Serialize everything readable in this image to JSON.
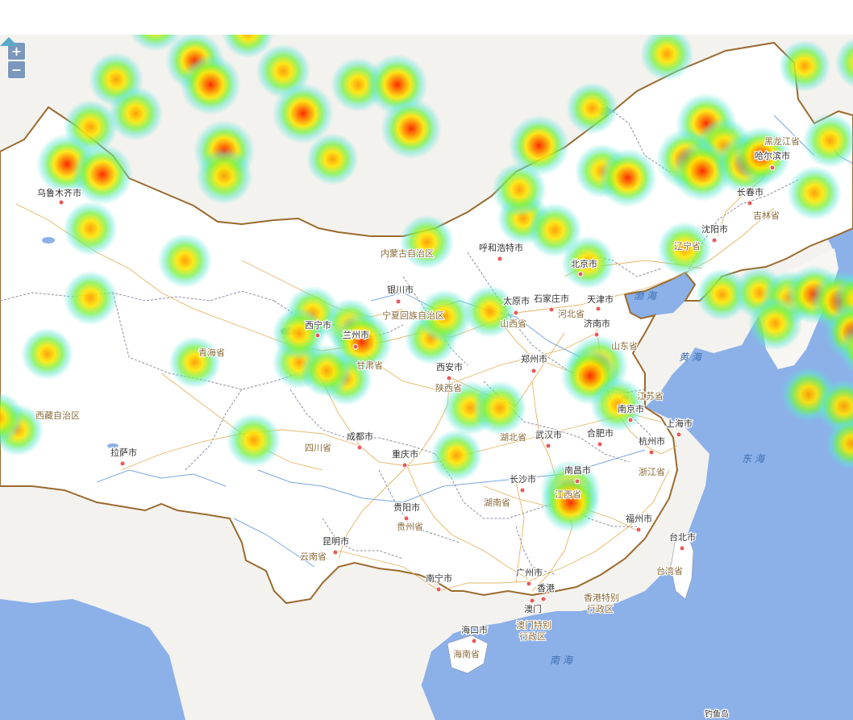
{
  "zoom": {
    "in_label": "+",
    "out_label": "−"
  },
  "colors": {
    "land": "#f3f2ef",
    "china": "#ffffff",
    "sea": "#8cb0e8",
    "border": "#9a6a2e",
    "road": "#e0a84a",
    "province_line": "#8a8fa3"
  },
  "cities": [
    {
      "name": "乌鲁木齐市"
    },
    {
      "name": "拉萨市"
    },
    {
      "name": "西宁市"
    },
    {
      "name": "兰州市"
    },
    {
      "name": "银川市"
    },
    {
      "name": "呼和浩特市"
    },
    {
      "name": "太原市"
    },
    {
      "name": "石家庄市"
    },
    {
      "name": "北京市"
    },
    {
      "name": "天津市"
    },
    {
      "name": "济南市"
    },
    {
      "name": "郑州市"
    },
    {
      "name": "西安市"
    },
    {
      "name": "成都市"
    },
    {
      "name": "重庆市"
    },
    {
      "name": "贵阳市"
    },
    {
      "name": "昆明市"
    },
    {
      "name": "南宁市"
    },
    {
      "name": "长沙市"
    },
    {
      "name": "武汉市"
    },
    {
      "name": "合肥市"
    },
    {
      "name": "南京市"
    },
    {
      "name": "上海市"
    },
    {
      "name": "杭州市"
    },
    {
      "name": "南昌市"
    },
    {
      "name": "福州市"
    },
    {
      "name": "台北市"
    },
    {
      "name": "广州市"
    },
    {
      "name": "香港"
    },
    {
      "name": "澳门"
    },
    {
      "name": "海口市"
    },
    {
      "name": "沈阳市"
    },
    {
      "name": "长春市"
    },
    {
      "name": "哈尔滨市"
    }
  ],
  "provinces": [
    {
      "name": "黑龙江省"
    },
    {
      "name": "吉林省"
    },
    {
      "name": "辽宁省"
    },
    {
      "name": "内蒙古自治区"
    },
    {
      "name": "宁夏回族自治区"
    },
    {
      "name": "青海省"
    },
    {
      "name": "西藏自治区"
    },
    {
      "name": "甘肃省"
    },
    {
      "name": "山西省"
    },
    {
      "name": "河北省"
    },
    {
      "name": "山东省"
    },
    {
      "name": "陕西省"
    },
    {
      "name": "四川省"
    },
    {
      "name": "湖北省"
    },
    {
      "name": "江苏省"
    },
    {
      "name": "浙江省"
    },
    {
      "name": "湖南省"
    },
    {
      "name": "江西省"
    },
    {
      "name": "贵州省"
    },
    {
      "name": "云南省"
    },
    {
      "name": "台湾省"
    },
    {
      "name": "海南省"
    },
    {
      "name": "香港特别行政区"
    },
    {
      "name": "澳门特别行政区"
    }
  ],
  "seas": [
    {
      "name": "渤 海"
    },
    {
      "name": "黄 海"
    },
    {
      "name": "东 海"
    },
    {
      "name": "南 海"
    }
  ],
  "islands": [
    {
      "name": "钓鱼岛"
    }
  ],
  "heat_points": [
    {
      "lon": 86.5,
      "lat": 47.8,
      "w": 0.75
    },
    {
      "lon": 88.5,
      "lat": 45.6,
      "w": 0.9
    },
    {
      "lon": 89.3,
      "lat": 44.2,
      "w": 1.0
    },
    {
      "lon": 91.2,
      "lat": 47.3,
      "w": 0.6
    },
    {
      "lon": 93.0,
      "lat": 45.0,
      "w": 0.7
    },
    {
      "lon": 94.0,
      "lat": 42.5,
      "w": 1.0
    },
    {
      "lon": 96.8,
      "lat": 44.2,
      "w": 0.7
    },
    {
      "lon": 98.8,
      "lat": 44.2,
      "w": 1.0
    },
    {
      "lon": 99.5,
      "lat": 41.6,
      "w": 1.0
    },
    {
      "lon": 95.5,
      "lat": 39.8,
      "w": 0.6
    },
    {
      "lon": 90.0,
      "lat": 40.3,
      "w": 1.0
    },
    {
      "lon": 90.0,
      "lat": 38.8,
      "w": 0.8
    },
    {
      "lon": 84.5,
      "lat": 44.5,
      "w": 0.7
    },
    {
      "lon": 85.5,
      "lat": 42.5,
      "w": 0.7
    },
    {
      "lon": 83.2,
      "lat": 41.7,
      "w": 0.7
    },
    {
      "lon": 82.0,
      "lat": 39.5,
      "w": 1.0
    },
    {
      "lon": 83.8,
      "lat": 38.9,
      "w": 1.0
    },
    {
      "lon": 83.2,
      "lat": 35.7,
      "w": 0.7
    },
    {
      "lon": 88.0,
      "lat": 33.8,
      "w": 0.7
    },
    {
      "lon": 83.2,
      "lat": 31.6,
      "w": 0.7
    },
    {
      "lon": 81.0,
      "lat": 28.3,
      "w": 0.6
    },
    {
      "lon": 88.5,
      "lat": 27.8,
      "w": 0.6
    },
    {
      "lon": 91.5,
      "lat": 23.2,
      "w": 0.7
    },
    {
      "lon": 93.8,
      "lat": 27.8,
      "w": 0.65
    },
    {
      "lon": 94.5,
      "lat": 30.7,
      "w": 0.7
    },
    {
      "lon": 96.4,
      "lat": 30.0,
      "w": 0.65
    },
    {
      "lon": 97.0,
      "lat": 29.0,
      "w": 1.0
    },
    {
      "lon": 93.8,
      "lat": 29.5,
      "w": 0.65
    },
    {
      "lon": 96.2,
      "lat": 26.8,
      "w": 0.6
    },
    {
      "lon": 100.3,
      "lat": 34.9,
      "w": 0.7
    },
    {
      "lon": 100.5,
      "lat": 29.2,
      "w": 0.6
    },
    {
      "lon": 101.2,
      "lat": 30.5,
      "w": 0.7
    },
    {
      "lon": 105.2,
      "lat": 36.3,
      "w": 0.6
    },
    {
      "lon": 106.0,
      "lat": 40.6,
      "w": 1.0
    },
    {
      "lon": 105.0,
      "lat": 38.0,
      "w": 0.7
    },
    {
      "lon": 106.8,
      "lat": 35.6,
      "w": 0.7
    },
    {
      "lon": 109.2,
      "lat": 39.1,
      "w": 0.7
    },
    {
      "lon": 110.5,
      "lat": 38.7,
      "w": 0.9
    },
    {
      "lon": 108.7,
      "lat": 42.8,
      "w": 0.6
    },
    {
      "lon": 112.5,
      "lat": 46.0,
      "w": 0.65
    },
    {
      "lon": 114.5,
      "lat": 41.9,
      "w": 1.0
    },
    {
      "lon": 115.4,
      "lat": 40.6,
      "w": 0.8
    },
    {
      "lon": 113.5,
      "lat": 39.8,
      "w": 1.0
    },
    {
      "lon": 114.3,
      "lat": 39.1,
      "w": 1.0
    },
    {
      "lon": 116.5,
      "lat": 39.5,
      "w": 1.0
    },
    {
      "lon": 117.3,
      "lat": 40.0,
      "w": 0.9
    },
    {
      "lon": 113.4,
      "lat": 34.5,
      "w": 0.7
    },
    {
      "lon": 120.8,
      "lat": 40.9,
      "w": 0.7
    },
    {
      "lon": 120.0,
      "lat": 37.8,
      "w": 0.7
    },
    {
      "lon": 124.5,
      "lat": 36.5,
      "w": 0.65
    },
    {
      "lon": 127.0,
      "lat": 38.4,
      "w": 0.6
    },
    {
      "lon": 119.5,
      "lat": 45.3,
      "w": 0.6
    },
    {
      "lon": 122.4,
      "lat": 45.5,
      "w": 0.65
    },
    {
      "lon": 115.3,
      "lat": 31.8,
      "w": 0.6
    },
    {
      "lon": 117.2,
      "lat": 31.9,
      "w": 0.6
    },
    {
      "lon": 118.7,
      "lat": 31.6,
      "w": 0.7
    },
    {
      "lon": 120.0,
      "lat": 31.8,
      "w": 0.9
    },
    {
      "lon": 121.3,
      "lat": 31.4,
      "w": 1.0
    },
    {
      "lon": 122.3,
      "lat": 31.5,
      "w": 0.75
    },
    {
      "lon": 124.2,
      "lat": 31.7,
      "w": 0.6
    },
    {
      "lon": 118.0,
      "lat": 30.1,
      "w": 0.7
    },
    {
      "lon": 122.0,
      "lat": 29.6,
      "w": 0.9
    },
    {
      "lon": 122.8,
      "lat": 28.6,
      "w": 1.0
    },
    {
      "lon": 124.8,
      "lat": 27.8,
      "w": 0.7
    },
    {
      "lon": 126.7,
      "lat": 25.8,
      "w": 0.6
    },
    {
      "lon": 119.7,
      "lat": 25.9,
      "w": 0.75
    },
    {
      "lon": 121.5,
      "lat": 25.2,
      "w": 0.7
    },
    {
      "lon": 123.3,
      "lat": 25.8,
      "w": 0.7
    },
    {
      "lon": 124.2,
      "lat": 24.9,
      "w": 1.0
    },
    {
      "lon": 124.7,
      "lat": 24.4,
      "w": 0.9
    },
    {
      "lon": 121.9,
      "lat": 23.0,
      "w": 0.6
    },
    {
      "lon": 126.7,
      "lat": 19.6,
      "w": 0.6
    },
    {
      "lon": 103.5,
      "lat": 30.8,
      "w": 0.6
    },
    {
      "lon": 109.0,
      "lat": 27.6,
      "w": 1.0
    },
    {
      "lon": 108.6,
      "lat": 27.0,
      "w": 0.9
    },
    {
      "lon": 110.0,
      "lat": 25.3,
      "w": 0.7
    },
    {
      "lon": 102.5,
      "lat": 25.1,
      "w": 0.7
    },
    {
      "lon": 104.0,
      "lat": 25.1,
      "w": 0.7
    },
    {
      "lon": 101.8,
      "lat": 22.3,
      "w": 0.6
    },
    {
      "lon": 107.6,
      "lat": 20.2,
      "w": 1.0
    },
    {
      "lon": 107.6,
      "lat": 19.5,
      "w": 0.9
    },
    {
      "lon": 79.5,
      "lat": 23.8,
      "w": 0.6
    },
    {
      "lon": 78.5,
      "lat": 24.5,
      "w": 0.6
    },
    {
      "lon": 95.2,
      "lat": 27.3,
      "w": 0.6
    },
    {
      "lon": 108.5,
      "lat": 33.7,
      "w": 0.65
    }
  ]
}
